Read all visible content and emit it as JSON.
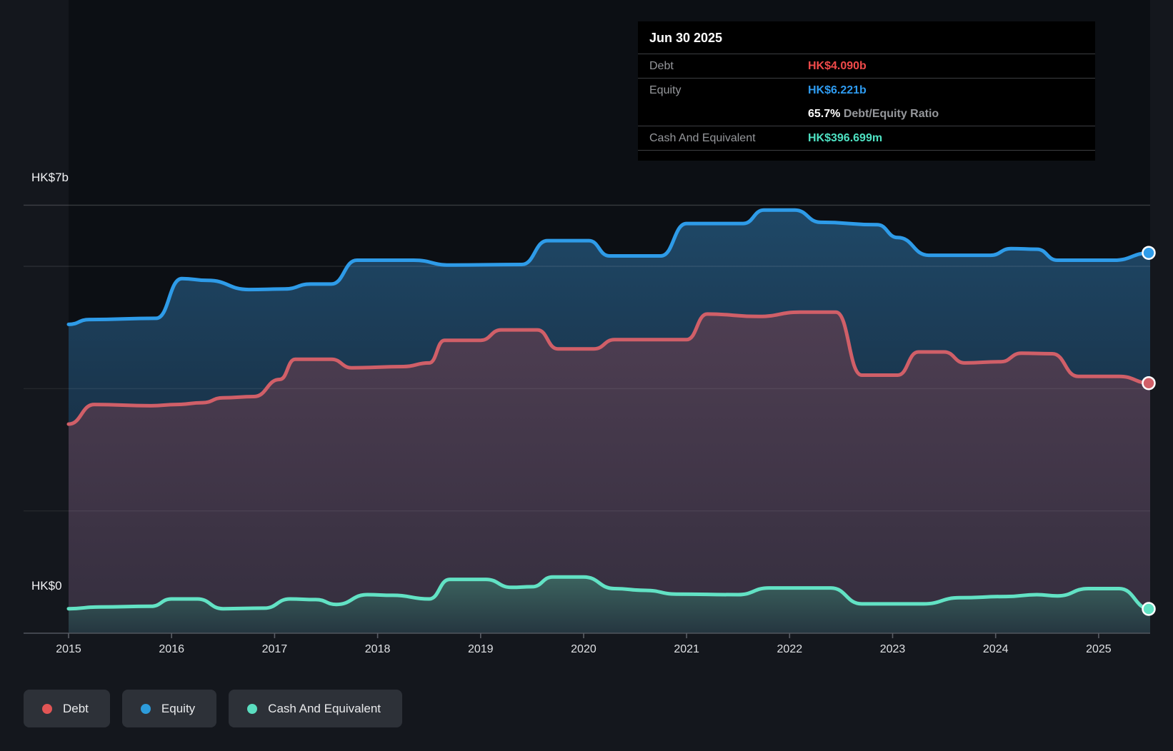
{
  "tooltip": {
    "date": "Jun 30 2025",
    "debt": {
      "label": "Debt",
      "value": "HK$4.090b",
      "color": "#f04a4a"
    },
    "equity": {
      "label": "Equity",
      "value": "HK$6.221b",
      "color": "#2e9bf0"
    },
    "ratio": {
      "value": "65.7%",
      "label": " Debt/Equity Ratio"
    },
    "cash": {
      "label": "Cash And Equivalent",
      "value": "HK$396.699m",
      "color": "#4ee1c2"
    }
  },
  "axis": {
    "y_top_label": "HK$7b",
    "y_bottom_label": "HK$0",
    "years": [
      "2015",
      "2016",
      "2017",
      "2018",
      "2019",
      "2020",
      "2021",
      "2022",
      "2023",
      "2024",
      "2025"
    ]
  },
  "legend": {
    "items": [
      {
        "label": "Debt",
        "color": "#e25555"
      },
      {
        "label": "Equity",
        "color": "#2d9cdb"
      },
      {
        "label": "Cash And Equivalent",
        "color": "#5bdec0"
      }
    ]
  },
  "chart_data": {
    "type": "area",
    "title": "Debt to Equity History",
    "unit": "HK$ billions",
    "x_range": [
      2015,
      2025.5
    ],
    "y_range": [
      0,
      7
    ],
    "y_gridline_values": [
      7,
      6,
      4,
      2
    ],
    "x_ticks": [
      2015,
      2016,
      2017,
      2018,
      2019,
      2020,
      2021,
      2022,
      2023,
      2024,
      2025
    ],
    "grid": "horizontal-only",
    "legend_position": "bottom-left",
    "series": [
      {
        "name": "Equity",
        "color": "#2e9be8",
        "fill_top": "#1f4867",
        "fill_bottom": "#131f2e",
        "end_value_label": "HK$6.221b",
        "points": [
          [
            2015.0,
            5.05
          ],
          [
            2015.2,
            5.13
          ],
          [
            2015.85,
            5.15
          ],
          [
            2016.1,
            5.8
          ],
          [
            2016.35,
            5.77
          ],
          [
            2016.75,
            5.62
          ],
          [
            2017.1,
            5.63
          ],
          [
            2017.35,
            5.71
          ],
          [
            2017.55,
            5.71
          ],
          [
            2017.8,
            6.1
          ],
          [
            2018.35,
            6.1
          ],
          [
            2018.7,
            6.02
          ],
          [
            2019.4,
            6.03
          ],
          [
            2019.65,
            6.42
          ],
          [
            2020.05,
            6.42
          ],
          [
            2020.25,
            6.17
          ],
          [
            2020.75,
            6.17
          ],
          [
            2021.0,
            6.7
          ],
          [
            2021.55,
            6.7
          ],
          [
            2021.75,
            6.92
          ],
          [
            2022.05,
            6.92
          ],
          [
            2022.3,
            6.72
          ],
          [
            2022.85,
            6.68
          ],
          [
            2023.05,
            6.47
          ],
          [
            2023.35,
            6.18
          ],
          [
            2023.95,
            6.18
          ],
          [
            2024.15,
            6.29
          ],
          [
            2024.4,
            6.28
          ],
          [
            2024.6,
            6.1
          ],
          [
            2025.15,
            6.1
          ],
          [
            2025.5,
            6.22
          ]
        ]
      },
      {
        "name": "Debt",
        "color": "#d05f68",
        "fill_top": "#4e3e52",
        "fill_bottom": "#342e3e",
        "end_value_label": "HK$4.090b",
        "points": [
          [
            2015.0,
            3.42
          ],
          [
            2015.25,
            3.74
          ],
          [
            2015.8,
            3.72
          ],
          [
            2016.05,
            3.74
          ],
          [
            2016.3,
            3.77
          ],
          [
            2016.5,
            3.85
          ],
          [
            2016.8,
            3.87
          ],
          [
            2017.05,
            4.15
          ],
          [
            2017.2,
            4.48
          ],
          [
            2017.55,
            4.48
          ],
          [
            2017.75,
            4.34
          ],
          [
            2018.25,
            4.36
          ],
          [
            2018.5,
            4.42
          ],
          [
            2018.65,
            4.79
          ],
          [
            2019.0,
            4.79
          ],
          [
            2019.2,
            4.96
          ],
          [
            2019.55,
            4.96
          ],
          [
            2019.75,
            4.65
          ],
          [
            2020.1,
            4.65
          ],
          [
            2020.3,
            4.8
          ],
          [
            2021.0,
            4.8
          ],
          [
            2021.2,
            5.22
          ],
          [
            2021.7,
            5.18
          ],
          [
            2022.1,
            5.25
          ],
          [
            2022.45,
            5.25
          ],
          [
            2022.7,
            4.22
          ],
          [
            2023.05,
            4.22
          ],
          [
            2023.25,
            4.6
          ],
          [
            2023.5,
            4.6
          ],
          [
            2023.7,
            4.42
          ],
          [
            2024.05,
            4.44
          ],
          [
            2024.25,
            4.58
          ],
          [
            2024.55,
            4.57
          ],
          [
            2024.8,
            4.2
          ],
          [
            2025.2,
            4.2
          ],
          [
            2025.5,
            4.09
          ]
        ]
      },
      {
        "name": "Cash And Equivalent",
        "color": "#62e2c4",
        "fill_top": "#3c635f",
        "fill_bottom": "#253640",
        "end_value_label": "HK$396.699m",
        "points": [
          [
            2015.0,
            0.4
          ],
          [
            2015.3,
            0.43
          ],
          [
            2015.8,
            0.44
          ],
          [
            2016.0,
            0.56
          ],
          [
            2016.25,
            0.56
          ],
          [
            2016.5,
            0.4
          ],
          [
            2016.9,
            0.41
          ],
          [
            2017.15,
            0.56
          ],
          [
            2017.4,
            0.55
          ],
          [
            2017.6,
            0.47
          ],
          [
            2017.9,
            0.63
          ],
          [
            2018.15,
            0.62
          ],
          [
            2018.5,
            0.56
          ],
          [
            2018.7,
            0.88
          ],
          [
            2019.05,
            0.88
          ],
          [
            2019.3,
            0.75
          ],
          [
            2019.5,
            0.76
          ],
          [
            2019.7,
            0.92
          ],
          [
            2020.0,
            0.92
          ],
          [
            2020.3,
            0.73
          ],
          [
            2020.6,
            0.7
          ],
          [
            2020.9,
            0.64
          ],
          [
            2021.5,
            0.63
          ],
          [
            2021.8,
            0.74
          ],
          [
            2022.4,
            0.74
          ],
          [
            2022.7,
            0.48
          ],
          [
            2023.3,
            0.48
          ],
          [
            2023.65,
            0.58
          ],
          [
            2024.1,
            0.6
          ],
          [
            2024.4,
            0.63
          ],
          [
            2024.6,
            0.61
          ],
          [
            2024.9,
            0.73
          ],
          [
            2025.2,
            0.73
          ],
          [
            2025.5,
            0.397
          ]
        ]
      }
    ]
  }
}
